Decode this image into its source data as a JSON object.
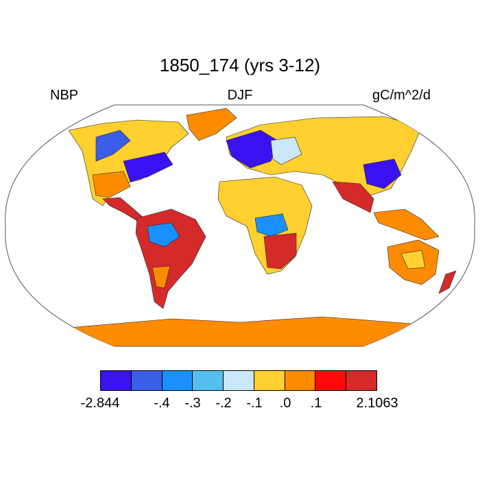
{
  "title": "1850_174 (yrs 3-12)",
  "left_label": "NBP",
  "center_label": "DJF",
  "right_label": "gC/m^2/d",
  "colorbar": {
    "colors": [
      "#3a12f2",
      "#3a5ee8",
      "#1a90ff",
      "#55c0f0",
      "#cbe8f8",
      "#ffd030",
      "#ff8c00",
      "#ff0a0a",
      "#d42a2a"
    ],
    "tick_labels": [
      "-2.844",
      "-.4",
      "-.3",
      "-.2",
      "-.1",
      ".0",
      ".1",
      "2.1063"
    ]
  }
}
